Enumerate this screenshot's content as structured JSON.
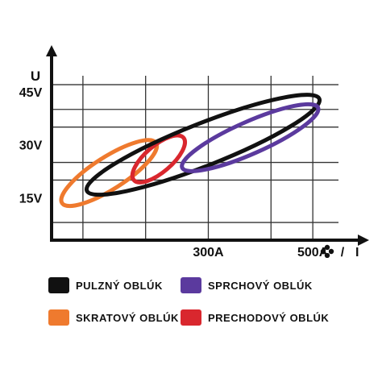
{
  "chart_data": {
    "type": "scatter",
    "title": "",
    "ylabel": "U",
    "xlabel": "I",
    "y_ticks": [
      "15V",
      "30V",
      "45V"
    ],
    "x_ticks": [
      "300A",
      "500A"
    ],
    "y_tick_values": [
      15,
      30,
      45
    ],
    "x_tick_values": [
      300,
      500
    ],
    "xlim": [
      0,
      580
    ],
    "ylim": [
      3,
      55
    ],
    "grid": true,
    "legend_position": "bottom",
    "series": [
      {
        "name": "PULZNÝ OBLÚK",
        "color": "#111111",
        "center": [
          290,
          30
        ],
        "x_range": [
          60,
          505
        ],
        "y_range": [
          17,
          43
        ]
      },
      {
        "name": "SPRCHOVÝ OBLÚK",
        "color": "#5b3a9e",
        "center": [
          380,
          32
        ],
        "x_range": [
          245,
          505
        ],
        "y_range": [
          24,
          41
        ]
      },
      {
        "name": "SKRATOVÝ OBLÚK",
        "color": "#ef7a2e",
        "center": [
          110,
          22
        ],
        "x_range": [
          20,
          200
        ],
        "y_range": [
          14,
          31
        ]
      },
      {
        "name": "PRECHODOVÝ OBLÚK",
        "color": "#d9272e",
        "center": [
          205,
          26
        ],
        "x_range": [
          160,
          255
        ],
        "y_range": [
          20,
          32
        ]
      }
    ]
  },
  "legend": [
    {
      "label": "PULZNÝ OBLÚK",
      "color": "#111111"
    },
    {
      "label": "SPRCHOVÝ OBLÚK",
      "color": "#5b3a9e"
    },
    {
      "label": "SKRATOVÝ OBLÚK",
      "color": "#ef7a2e"
    },
    {
      "label": "PRECHODOVÝ OBLÚK",
      "color": "#d9272e"
    }
  ]
}
